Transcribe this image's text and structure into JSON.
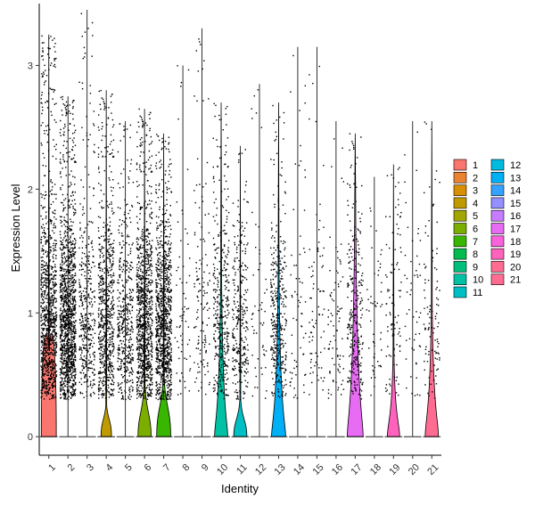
{
  "chart_data": {
    "type": "violin",
    "xlabel": "Identity",
    "ylabel": "Expression Level",
    "ylim": [
      -0.15,
      3.5
    ],
    "yticks": [
      0,
      1,
      2,
      3
    ],
    "categories": [
      "1",
      "2",
      "3",
      "4",
      "5",
      "6",
      "7",
      "8",
      "9",
      "10",
      "11",
      "12",
      "13",
      "14",
      "15",
      "16",
      "17",
      "18",
      "19",
      "20",
      "21"
    ],
    "colors": [
      "#F8766D",
      "#EA8331",
      "#D89000",
      "#C09B00",
      "#A3A500",
      "#7CAE00",
      "#39B600",
      "#00BB4E",
      "#00BF7D",
      "#00C1A3",
      "#00BFC4",
      "#00BAE0",
      "#00B0F6",
      "#35A2FF",
      "#9590FF",
      "#C77CFF",
      "#E76BF3",
      "#FA62DB",
      "#FF62BC",
      "#FF6C91",
      "#FF6C91"
    ],
    "series": [
      {
        "name": "1",
        "max": 3.25,
        "density": 0.75,
        "violin": {
          "bulge": 0.9,
          "width": 0.85,
          "top": 0.7
        }
      },
      {
        "name": "2",
        "max": 2.75,
        "density": 1.0,
        "violin": {
          "bulge": 0.0,
          "width": 0.0,
          "top": 0.0
        }
      },
      {
        "name": "3",
        "max": 3.45,
        "density": 0.3,
        "violin": {
          "bulge": 0.0,
          "width": 0.0,
          "top": 0.0
        }
      },
      {
        "name": "4",
        "max": 2.8,
        "density": 0.55,
        "violin": {
          "bulge": 0.1,
          "width": 0.6,
          "top": 0.25
        }
      },
      {
        "name": "5",
        "max": 2.55,
        "density": 0.35,
        "violin": {
          "bulge": 0.0,
          "width": 0.0,
          "top": 0.0
        }
      },
      {
        "name": "6",
        "max": 2.65,
        "density": 0.75,
        "violin": {
          "bulge": 0.15,
          "width": 0.75,
          "top": 0.45
        }
      },
      {
        "name": "7",
        "max": 2.45,
        "density": 0.75,
        "violin": {
          "bulge": 0.2,
          "width": 0.8,
          "top": 0.5
        }
      },
      {
        "name": "8",
        "max": 3.0,
        "density": 0.05,
        "violin": {
          "bulge": 0.0,
          "width": 0.0,
          "top": 0.0
        }
      },
      {
        "name": "9",
        "max": 3.3,
        "density": 0.1,
        "violin": {
          "bulge": 0.0,
          "width": 0.0,
          "top": 0.0
        }
      },
      {
        "name": "10",
        "max": 2.7,
        "density": 0.3,
        "violin": {
          "bulge": 0.1,
          "width": 0.75,
          "top": 1.35
        }
      },
      {
        "name": "11",
        "max": 2.35,
        "density": 0.22,
        "violin": {
          "bulge": 0.1,
          "width": 0.75,
          "top": 0.3
        }
      },
      {
        "name": "12",
        "max": 2.85,
        "density": 0.04,
        "violin": {
          "bulge": 0.0,
          "width": 0.0,
          "top": 0.0
        }
      },
      {
        "name": "13",
        "max": 2.7,
        "density": 0.28,
        "violin": {
          "bulge": 0.1,
          "width": 0.8,
          "top": 1.35
        }
      },
      {
        "name": "14",
        "max": 3.15,
        "density": 0.05,
        "violin": {
          "bulge": 0.0,
          "width": 0.0,
          "top": 0.0
        }
      },
      {
        "name": "15",
        "max": 3.15,
        "density": 0.06,
        "violin": {
          "bulge": 0.0,
          "width": 0.0,
          "top": 0.0
        }
      },
      {
        "name": "16",
        "max": 2.55,
        "density": 0.06,
        "violin": {
          "bulge": 0.0,
          "width": 0.0,
          "top": 0.0
        }
      },
      {
        "name": "17",
        "max": 2.45,
        "density": 0.22,
        "violin": {
          "bulge": 0.15,
          "width": 0.9,
          "top": 1.95
        }
      },
      {
        "name": "18",
        "max": 2.1,
        "density": 0.04,
        "violin": {
          "bulge": 0.0,
          "width": 0.0,
          "top": 0.0
        }
      },
      {
        "name": "19",
        "max": 2.2,
        "density": 0.08,
        "violin": {
          "bulge": 0.08,
          "width": 0.7,
          "top": 0.7
        }
      },
      {
        "name": "20",
        "max": 2.55,
        "density": 0.04,
        "violin": {
          "bulge": 0.0,
          "width": 0.0,
          "top": 0.0
        }
      },
      {
        "name": "21",
        "max": 2.55,
        "density": 0.08,
        "violin": {
          "bulge": 0.12,
          "width": 0.75,
          "top": 1.1
        }
      }
    ],
    "legend_position": "right",
    "grid": false
  }
}
